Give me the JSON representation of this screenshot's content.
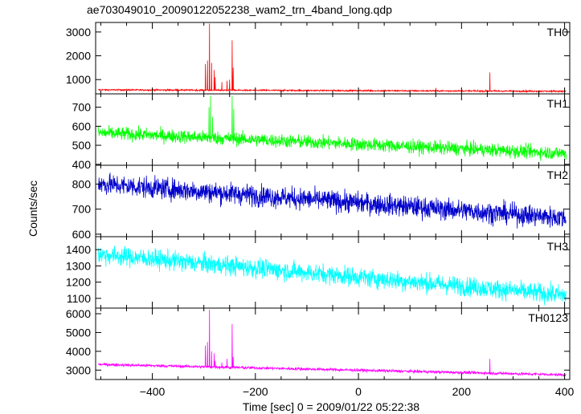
{
  "chart_data": {
    "type": "line",
    "title": "ae703049010_20090122052238_wam2_trn_4band_long.qdp",
    "xlabel": "Time [sec] 0 = 2009/01/22 05:22:38",
    "ylabel": "Counts/sec",
    "xlim": [
      -510,
      410
    ],
    "xticks": [
      -400,
      -200,
      0,
      200,
      400
    ],
    "panels": [
      {
        "name": "TH0",
        "color": "#ff0000",
        "ylim": [
          400,
          3400
        ],
        "yticks": [
          1000,
          2000,
          3000
        ],
        "baseline": [
          [
            -500,
            570
          ],
          [
            400,
            510
          ]
        ],
        "noise": 22,
        "spikes": [
          [
            -297,
            1650
          ],
          [
            -293,
            1800
          ],
          [
            -289,
            3350
          ],
          [
            -285,
            1700
          ],
          [
            -280,
            1400
          ],
          [
            -278,
            1100
          ],
          [
            -265,
            900
          ],
          [
            -255,
            950
          ],
          [
            -250,
            1000
          ],
          [
            -245,
            2650
          ],
          [
            -243,
            1500
          ],
          [
            150,
            650
          ],
          [
            255,
            1300
          ]
        ]
      },
      {
        "name": "TH1",
        "color": "#00ff00",
        "ylim": [
          395,
          770
        ],
        "yticks": [
          400,
          500,
          600,
          700
        ],
        "baseline": [
          [
            -500,
            565
          ],
          [
            400,
            458
          ]
        ],
        "noise": 25,
        "spikes": [
          [
            -290,
            700
          ],
          [
            -287,
            760
          ],
          [
            -283,
            650
          ],
          [
            -245,
            760
          ],
          [
            -242,
            690
          ]
        ]
      },
      {
        "name": "TH2",
        "color": "#0000cc",
        "ylim": [
          590,
          875
        ],
        "yticks": [
          600,
          700,
          800
        ],
        "baseline": [
          [
            -500,
            800
          ],
          [
            400,
            665
          ]
        ],
        "noise": 30,
        "spikes": []
      },
      {
        "name": "TH3",
        "color": "#00ffff",
        "ylim": [
          1040,
          1480
        ],
        "yticks": [
          1100,
          1200,
          1300,
          1400
        ],
        "baseline": [
          [
            -500,
            1370
          ],
          [
            400,
            1120
          ]
        ],
        "noise": 42,
        "spikes": []
      },
      {
        "name": "TH0123",
        "color": "#ff00ff",
        "ylim": [
          2500,
          6300
        ],
        "yticks": [
          3000,
          4000,
          5000,
          6000
        ],
        "baseline": [
          [
            -500,
            3300
          ],
          [
            400,
            2750
          ]
        ],
        "noise": 55,
        "spikes": [
          [
            -297,
            4300
          ],
          [
            -293,
            4500
          ],
          [
            -289,
            6200
          ],
          [
            -285,
            4000
          ],
          [
            -280,
            3900
          ],
          [
            -278,
            3500
          ],
          [
            -265,
            3400
          ],
          [
            -255,
            3600
          ],
          [
            -245,
            5450
          ],
          [
            -243,
            3700
          ],
          [
            255,
            3600
          ]
        ]
      }
    ],
    "grid": false
  }
}
